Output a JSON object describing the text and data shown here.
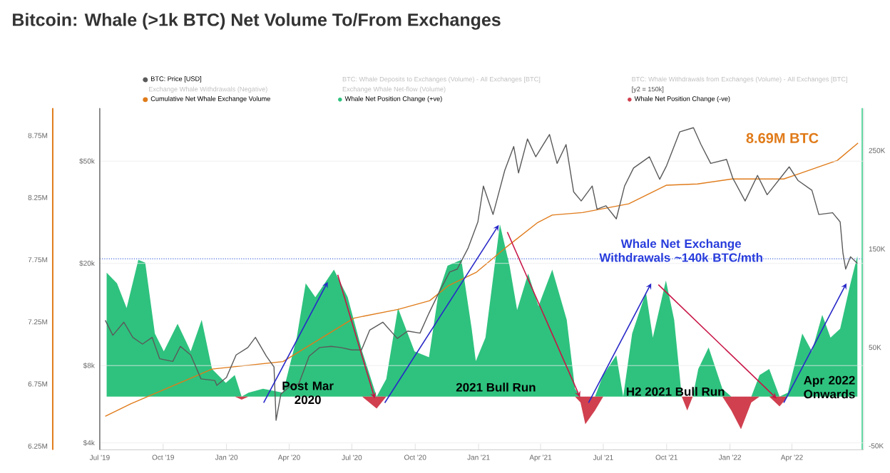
{
  "chart_data": {
    "type": "line",
    "title": "Bitcoin: Whale (>1k BTC) Net Volume To/From Exchanges",
    "xlim": [
      "2019-07-01",
      "2022-07-14"
    ],
    "xticks": [
      {
        "value": "2019-07-01",
        "label": "Jul '19"
      },
      {
        "value": "2019-10-01",
        "label": "Oct '19"
      },
      {
        "value": "2020-01-01",
        "label": "Jan '20"
      },
      {
        "value": "2020-04-01",
        "label": "Apr '20"
      },
      {
        "value": "2020-07-01",
        "label": "Jul '20"
      },
      {
        "value": "2020-10-01",
        "label": "Oct '20"
      },
      {
        "value": "2021-01-01",
        "label": "Jan '21"
      },
      {
        "value": "2021-04-01",
        "label": "Apr '21"
      },
      {
        "value": "2021-07-01",
        "label": "Jul '21"
      },
      {
        "value": "2021-10-01",
        "label": "Oct '21"
      },
      {
        "value": "2022-01-01",
        "label": "Jan '22"
      },
      {
        "value": "2022-04-01",
        "label": "Apr '22"
      }
    ],
    "ylim": [
      6220000,
      8970000
    ],
    "yticks": [
      {
        "value": 6250000,
        "label": "6.25M"
      },
      {
        "value": 6750000,
        "label": "6.75M"
      },
      {
        "value": 7250000,
        "label": "7.25M"
      },
      {
        "value": 7750000,
        "label": "7.75M"
      },
      {
        "value": 8250000,
        "label": "8.25M"
      },
      {
        "value": 8750000,
        "label": "8.75M"
      }
    ],
    "y2lim": [
      -54000,
      293000
    ],
    "y2ticks": [
      {
        "value": -50000,
        "label": "-50K"
      },
      {
        "value": 50000,
        "label": "50K"
      },
      {
        "value": 150000,
        "label": "150K"
      },
      {
        "value": 250000,
        "label": "250K"
      }
    ],
    "y3lim": [
      3760,
      80400
    ],
    "y3ticks": [
      {
        "value": 4000,
        "label": "$4k"
      },
      {
        "value": 8000,
        "label": "$8k"
      },
      {
        "value": 20000,
        "label": "$20k"
      },
      {
        "value": 50000,
        "label": "$50k"
      }
    ],
    "log": "y3",
    "grid": "y",
    "legend": "top",
    "ref_lines": [
      {
        "axis": "y2",
        "value": 140000,
        "color": "#4a6ee0",
        "line_style": "dotted"
      },
      {
        "axis": "x",
        "value": "2022-07-12",
        "color": "#3ecf8e",
        "line_style": "solid"
      }
    ],
    "annotations": [
      "BTC: Whale Deposits to Exchanges (Volume) - All Exchanges [BTC]",
      "BTC: Whale Withdrawals from Exchanges (Volume) - All Exchanges [BTC]",
      "Exchange Whale Withdrawals (Negative)",
      "Exchange Whale Net-flow (Volume)",
      "[y2 = 150k]",
      "8.69M BTC",
      "Whale Net Exchange Withdrawals ~140k BTC/mth",
      "Post Mar 2020",
      "2021 Bull Run",
      "H2 2021 Bull Run",
      "Apr 2022 Onwards"
    ],
    "series": [
      {
        "name": "Whale Net Position Change (+ve)",
        "type": "area",
        "axis": "y2",
        "color": "#2ec27e",
        "x": [
          "2019-07-11",
          "2019-07-26",
          "2019-08-09",
          "2019-08-26",
          "2019-09-05",
          "2019-09-19",
          "2019-10-02",
          "2019-10-22",
          "2019-11-10",
          "2019-11-26",
          "2019-12-11",
          "2019-12-31",
          "2020-01-13",
          "2020-01-23",
          "2020-02-02",
          "2020-02-23",
          "2020-03-23",
          "2020-04-12",
          "2020-04-25",
          "2020-05-09",
          "2020-06-05",
          "2020-06-25",
          "2020-07-16",
          "2020-08-06",
          "2020-08-20",
          "2020-09-06",
          "2020-09-30",
          "2020-10-21",
          "2020-11-04",
          "2020-11-17",
          "2020-12-07",
          "2020-12-22",
          "2020-12-28",
          "2021-01-11",
          "2021-02-01",
          "2021-02-15",
          "2021-02-26",
          "2021-03-14",
          "2021-03-29",
          "2021-04-18",
          "2021-05-09",
          "2021-05-21",
          "2021-05-29",
          "2021-06-05",
          "2021-06-19",
          "2021-07-01",
          "2021-07-20",
          "2021-07-30",
          "2021-08-12",
          "2021-09-01",
          "2021-09-11",
          "2021-09-30",
          "2021-10-12",
          "2021-10-23",
          "2021-10-31",
          "2021-11-08",
          "2021-11-16",
          "2021-12-01",
          "2021-12-21",
          "2022-01-03",
          "2022-01-17",
          "2022-02-01",
          "2022-02-13",
          "2022-02-27",
          "2022-03-14",
          "2022-03-26",
          "2022-04-16",
          "2022-04-30",
          "2022-05-15",
          "2022-05-27",
          "2022-06-10",
          "2022-06-25",
          "2022-07-05"
        ],
        "values": [
          126000,
          115000,
          90000,
          139000,
          136000,
          64000,
          46000,
          74000,
          46000,
          78000,
          28000,
          14000,
          22000,
          0,
          4000,
          8000,
          4000,
          60000,
          115000,
          101000,
          129000,
          101000,
          46000,
          0,
          18000,
          90000,
          46000,
          40000,
          106000,
          133000,
          139000,
          69000,
          36000,
          60000,
          175000,
          133000,
          88000,
          125000,
          92000,
          129000,
          78000,
          8000,
          0,
          0,
          0,
          22000,
          42000,
          0,
          64000,
          106000,
          60000,
          118000,
          78000,
          0,
          0,
          0,
          28000,
          50000,
          8000,
          0,
          0,
          0,
          22000,
          28000,
          0,
          4000,
          64000,
          46000,
          83000,
          60000,
          69000,
          115000,
          143000
        ]
      },
      {
        "name": "Whale Net Position Change (-ve)",
        "type": "area",
        "axis": "y2",
        "color": "#d0404f",
        "x": [
          "2019-07-11",
          "2019-07-26",
          "2019-08-09",
          "2019-08-26",
          "2019-09-05",
          "2019-09-19",
          "2019-10-02",
          "2019-10-22",
          "2019-11-10",
          "2019-11-26",
          "2019-12-11",
          "2019-12-31",
          "2020-01-13",
          "2020-01-23",
          "2020-02-02",
          "2020-02-23",
          "2020-03-23",
          "2020-04-12",
          "2020-04-25",
          "2020-05-09",
          "2020-06-05",
          "2020-06-25",
          "2020-07-16",
          "2020-08-06",
          "2020-08-20",
          "2020-09-06",
          "2020-09-30",
          "2020-10-21",
          "2020-11-04",
          "2020-11-17",
          "2020-12-07",
          "2020-12-22",
          "2020-12-28",
          "2021-01-11",
          "2021-02-01",
          "2021-02-15",
          "2021-02-26",
          "2021-03-14",
          "2021-03-29",
          "2021-04-18",
          "2021-05-09",
          "2021-05-21",
          "2021-05-29",
          "2021-06-05",
          "2021-06-19",
          "2021-07-01",
          "2021-07-20",
          "2021-07-30",
          "2021-08-12",
          "2021-09-01",
          "2021-09-11",
          "2021-09-30",
          "2021-10-12",
          "2021-10-23",
          "2021-10-31",
          "2021-11-08",
          "2021-11-16",
          "2021-12-01",
          "2021-12-21",
          "2022-01-03",
          "2022-01-17",
          "2022-02-01",
          "2022-02-13",
          "2022-02-27",
          "2022-03-14",
          "2022-03-26",
          "2022-04-16",
          "2022-04-30",
          "2022-05-15",
          "2022-05-27",
          "2022-06-10",
          "2022-06-25",
          "2022-07-05"
        ],
        "values": [
          0,
          0,
          0,
          0,
          0,
          0,
          0,
          0,
          0,
          0,
          0,
          0,
          0,
          -3000,
          0,
          0,
          0,
          0,
          0,
          0,
          0,
          0,
          0,
          -12000,
          0,
          0,
          0,
          0,
          0,
          0,
          0,
          0,
          0,
          0,
          0,
          0,
          0,
          0,
          0,
          0,
          0,
          0,
          -6000,
          -28000,
          -14000,
          0,
          0,
          0,
          0,
          0,
          0,
          0,
          0,
          0,
          -14000,
          0,
          0,
          0,
          0,
          -14000,
          -33000,
          -6000,
          0,
          0,
          -10000,
          0,
          0,
          0,
          0,
          0,
          0,
          0,
          0
        ]
      },
      {
        "name": "Cumulative Net Whale Exchange Volume",
        "axis": "y",
        "color": "#e07b1a",
        "x": [
          "2019-07-09",
          "2019-08-15",
          "2019-12-11",
          "2020-03-23",
          "2020-07-04",
          "2020-09-06",
          "2020-10-22",
          "2020-11-18",
          "2020-12-29",
          "2021-02-10",
          "2021-03-28",
          "2021-04-18",
          "2021-06-01",
          "2021-08-07",
          "2021-10-01",
          "2021-11-15",
          "2022-01-04",
          "2022-03-20",
          "2022-04-10",
          "2022-06-06",
          "2022-07-06"
        ],
        "values": [
          6490000,
          6590000,
          6870000,
          6930000,
          7280000,
          7350000,
          7420000,
          7540000,
          7650000,
          7850000,
          8050000,
          8110000,
          8130000,
          8200000,
          8350000,
          8360000,
          8400000,
          8400000,
          8440000,
          8550000,
          8690000
        ]
      },
      {
        "name": "BTC: Price [USD]",
        "axis": "y3",
        "color": "#5a5a5a",
        "x": [
          "2019-07-09",
          "2019-07-20",
          "2019-08-05",
          "2019-08-18",
          "2019-09-01",
          "2019-09-15",
          "2019-09-26",
          "2019-10-15",
          "2019-10-26",
          "2019-11-10",
          "2019-11-25",
          "2019-12-15",
          "2019-12-18",
          "2020-01-01",
          "2020-01-15",
          "2020-02-01",
          "2020-02-12",
          "2020-02-28",
          "2020-03-10",
          "2020-03-13",
          "2020-03-20",
          "2020-04-01",
          "2020-04-15",
          "2020-04-30",
          "2020-05-15",
          "2020-06-01",
          "2020-06-15",
          "2020-07-01",
          "2020-07-15",
          "2020-07-27",
          "2020-08-15",
          "2020-09-05",
          "2020-09-20",
          "2020-10-08",
          "2020-10-21",
          "2020-11-05",
          "2020-11-20",
          "2020-12-01",
          "2020-12-17",
          "2020-12-31",
          "2021-01-08",
          "2021-01-22",
          "2021-02-08",
          "2021-02-21",
          "2021-02-28",
          "2021-03-13",
          "2021-03-25",
          "2021-04-14",
          "2021-04-25",
          "2021-05-08",
          "2021-05-19",
          "2021-05-30",
          "2021-06-15",
          "2021-06-22",
          "2021-07-05",
          "2021-07-20",
          "2021-08-01",
          "2021-08-14",
          "2021-09-06",
          "2021-09-21",
          "2021-10-01",
          "2021-10-20",
          "2021-11-09",
          "2021-11-20",
          "2021-12-04",
          "2021-12-27",
          "2022-01-05",
          "2022-01-23",
          "2022-02-10",
          "2022-02-24",
          "2022-03-28",
          "2022-04-10",
          "2022-04-30",
          "2022-05-10",
          "2022-05-30",
          "2022-06-10",
          "2022-06-14",
          "2022-06-18",
          "2022-06-25",
          "2022-07-05"
        ],
        "values": [
          12000,
          10500,
          11800,
          10300,
          9700,
          10300,
          8500,
          8300,
          9500,
          8800,
          7100,
          7000,
          6700,
          7200,
          8800,
          9400,
          10300,
          8700,
          7900,
          4900,
          6200,
          6600,
          6800,
          8700,
          9400,
          9500,
          9400,
          9200,
          9200,
          11000,
          11800,
          10200,
          10900,
          10700,
          12800,
          15500,
          18500,
          19000,
          23000,
          29000,
          40000,
          31000,
          46000,
          57000,
          45000,
          61000,
          52000,
          63500,
          49000,
          58000,
          38000,
          35000,
          40000,
          32500,
          33500,
          29800,
          40000,
          47000,
          52000,
          42500,
          48000,
          65000,
          67500,
          58000,
          49000,
          50800,
          43000,
          35000,
          44000,
          37000,
          47500,
          42000,
          38500,
          31000,
          31500,
          29000,
          22000,
          19000,
          21200,
          20000
        ]
      }
    ]
  }
}
